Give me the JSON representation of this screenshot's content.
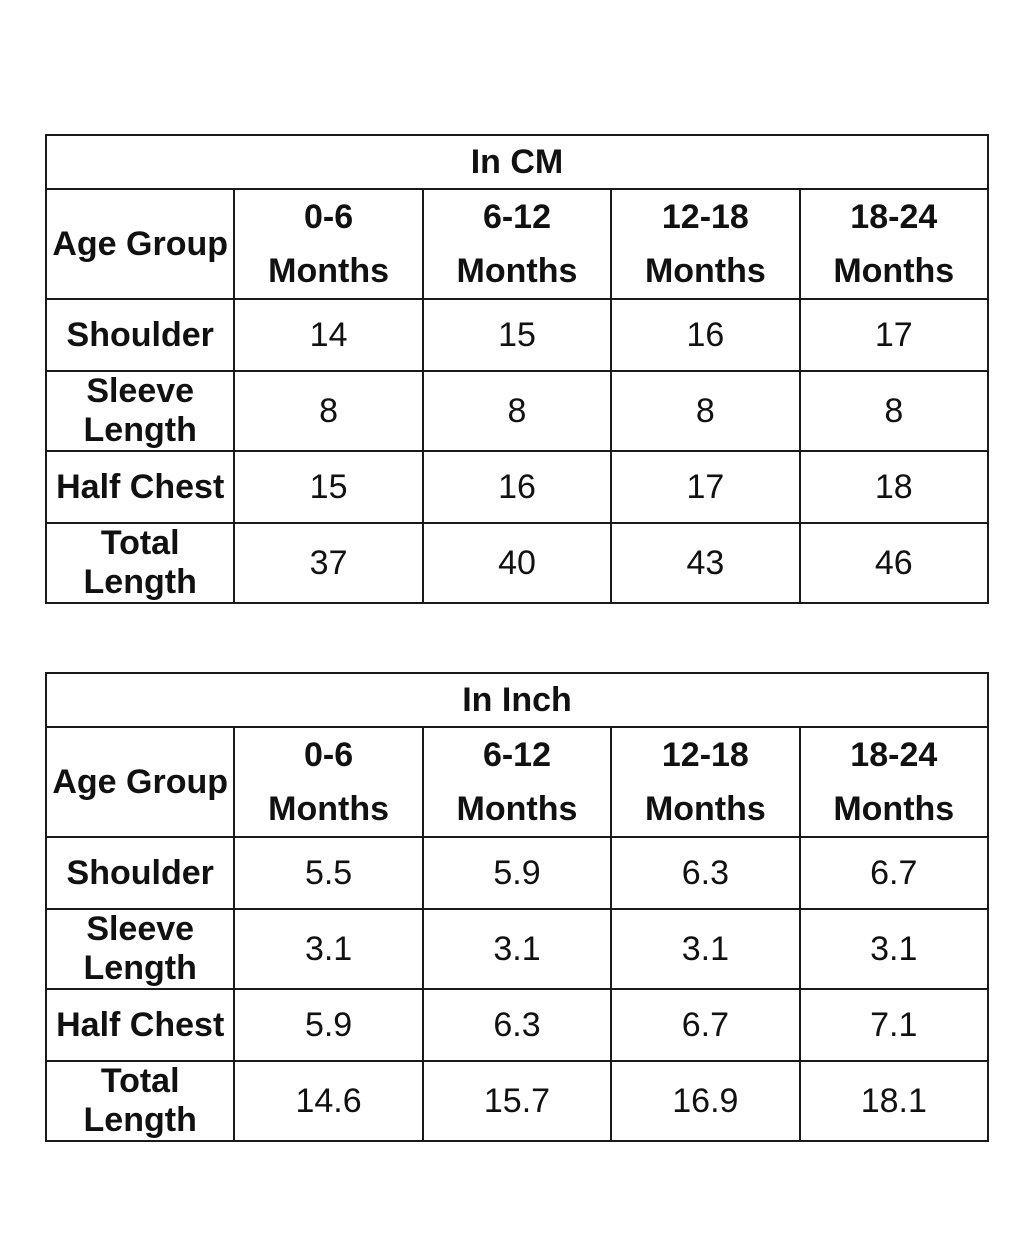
{
  "tables": [
    {
      "title": "In CM",
      "header_label": "Age Group",
      "columns": [
        {
          "line1": "0-6",
          "line2": "Months"
        },
        {
          "line1": "6-12",
          "line2": "Months"
        },
        {
          "line1": "12-18",
          "line2": "Months"
        },
        {
          "line1": "18-24",
          "line2": "Months"
        }
      ],
      "rows": [
        {
          "label": "Shoulder",
          "values": [
            "14",
            "15",
            "16",
            "17"
          ]
        },
        {
          "label": "Sleeve Length",
          "values": [
            "8",
            "8",
            "8",
            "8"
          ]
        },
        {
          "label": "Half Chest",
          "values": [
            "15",
            "16",
            "17",
            "18"
          ]
        },
        {
          "label": "Total Length",
          "values": [
            "37",
            "40",
            "43",
            "46"
          ]
        }
      ]
    },
    {
      "title": "In Inch",
      "header_label": "Age Group",
      "columns": [
        {
          "line1": "0-6",
          "line2": "Months"
        },
        {
          "line1": "6-12",
          "line2": "Months"
        },
        {
          "line1": "12-18",
          "line2": "Months"
        },
        {
          "line1": "18-24",
          "line2": "Months"
        }
      ],
      "rows": [
        {
          "label": "Shoulder",
          "values": [
            "5.5",
            "5.9",
            "6.3",
            "6.7"
          ]
        },
        {
          "label": "Sleeve Length",
          "values": [
            "3.1",
            "3.1",
            "3.1",
            "3.1"
          ]
        },
        {
          "label": "Half Chest",
          "values": [
            "5.9",
            "6.3",
            "6.7",
            "7.1"
          ]
        },
        {
          "label": "Total Length",
          "values": [
            "14.6",
            "15.7",
            "16.9",
            "18.1"
          ]
        }
      ]
    }
  ]
}
